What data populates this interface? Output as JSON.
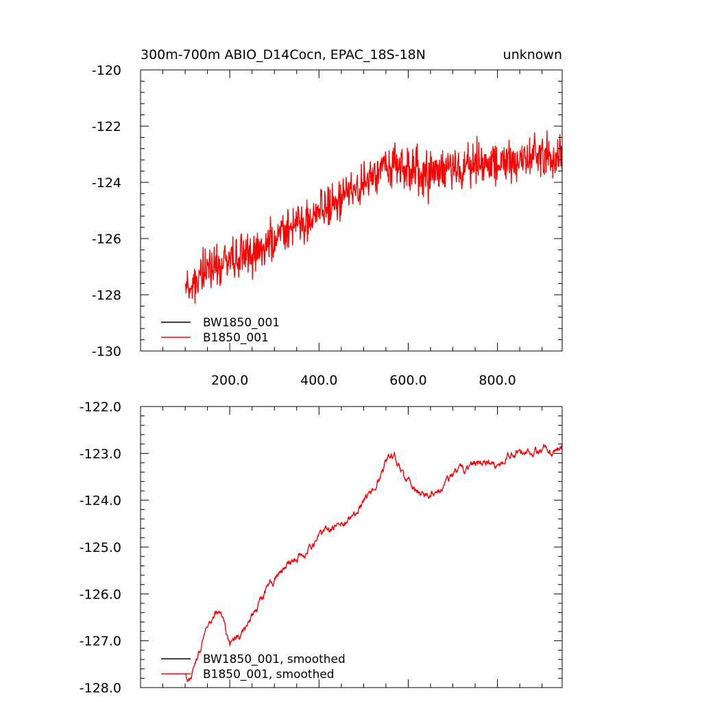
{
  "figure": {
    "background": "#ffffff"
  },
  "chart_data": [
    {
      "type": "line",
      "title_left": "300m-700m ABIO_D14Cocn, EPAC_18S-18N",
      "title_right": "unknown",
      "xlabel": "",
      "ylabel": "",
      "xlim": [
        0,
        945
      ],
      "ylim": [
        -130,
        -120
      ],
      "xticks": [
        200,
        400,
        600,
        800
      ],
      "xtick_labels": [
        "200.0",
        "400.0",
        "600.0",
        "800.0"
      ],
      "yticks": [
        -130,
        -128,
        -126,
        -124,
        -122,
        -120
      ],
      "ytick_labels": [
        "-130",
        "-128",
        "-126",
        "-124",
        "-122",
        "-120"
      ],
      "grid": false,
      "legend_position": "bottom-left",
      "series": [
        {
          "name": "BW1850_001",
          "color": "#000000",
          "values": []
        },
        {
          "name": "B1850_001",
          "color": "#ff0000",
          "noise": 0.55,
          "trend_x": [
            101,
            150,
            200,
            250,
            300,
            350,
            400,
            450,
            500,
            550,
            600,
            650,
            700,
            750,
            800,
            850,
            900,
            945
          ],
          "trend_y": [
            -127.8,
            -127.2,
            -126.8,
            -126.5,
            -126.0,
            -125.5,
            -125.0,
            -124.6,
            -124.1,
            -123.3,
            -123.6,
            -123.7,
            -123.5,
            -123.4,
            -123.3,
            -123.2,
            -123.0,
            -123.0
          ]
        }
      ]
    },
    {
      "type": "line",
      "title_left": "",
      "title_right": "",
      "xlabel": "",
      "ylabel": "",
      "xlim": [
        0,
        945
      ],
      "ylim": [
        -128,
        -122
      ],
      "xticks": [
        200,
        400,
        600,
        800
      ],
      "xtick_labels": [],
      "yticks": [
        -128,
        -127,
        -126,
        -125,
        -124,
        -123,
        -122
      ],
      "ytick_labels": [
        "-128.0",
        "-127.0",
        "-126.0",
        "-125.0",
        "-124.0",
        "-123.0",
        "-122.0"
      ],
      "grid": false,
      "legend_position": "bottom-left",
      "series": [
        {
          "name": "BW1850_001, smoothed",
          "color": "#000000",
          "values": []
        },
        {
          "name": "B1850_001, smoothed",
          "color": "#ff0000",
          "noise": 0.07,
          "trend_x": [
            101,
            110,
            120,
            130,
            140,
            150,
            160,
            170,
            180,
            190,
            200,
            220,
            240,
            260,
            280,
            300,
            320,
            340,
            360,
            380,
            400,
            420,
            440,
            460,
            480,
            500,
            520,
            540,
            550,
            560,
            570,
            580,
            590,
            600,
            620,
            640,
            660,
            680,
            700,
            720,
            740,
            760,
            780,
            800,
            820,
            840,
            860,
            880,
            900,
            920,
            945
          ],
          "trend_y": [
            -127.72,
            -127.85,
            -127.6,
            -127.3,
            -127.0,
            -126.8,
            -126.6,
            -126.45,
            -126.45,
            -126.7,
            -127.1,
            -126.95,
            -126.7,
            -126.35,
            -125.95,
            -125.7,
            -125.45,
            -125.35,
            -125.2,
            -125.05,
            -124.8,
            -124.65,
            -124.55,
            -124.45,
            -124.25,
            -124.05,
            -123.7,
            -123.45,
            -123.2,
            -123.02,
            -123.05,
            -123.3,
            -123.55,
            -123.62,
            -123.78,
            -123.92,
            -123.85,
            -123.65,
            -123.5,
            -123.35,
            -123.3,
            -123.2,
            -123.2,
            -123.35,
            -123.1,
            -122.98,
            -123.0,
            -122.95,
            -122.9,
            -122.92,
            -122.9
          ]
        }
      ]
    }
  ]
}
